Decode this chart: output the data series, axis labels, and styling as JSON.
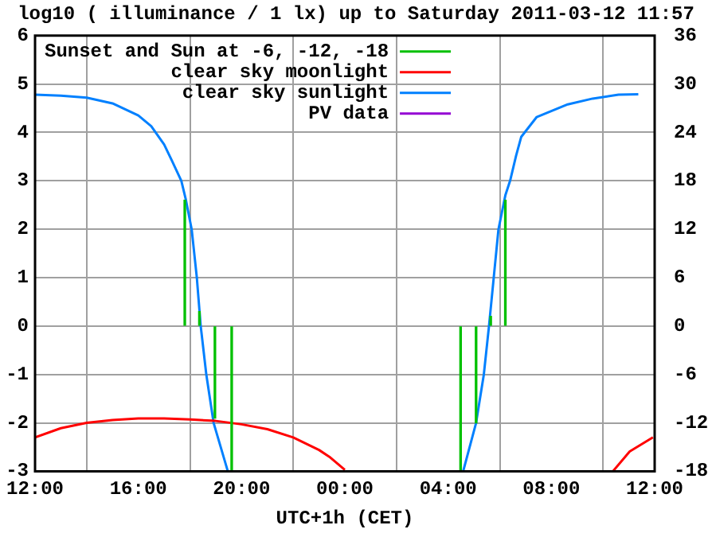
{
  "chart_data": {
    "type": "line",
    "title": "log10 ( illuminance / 1 lx) up to Saturday 2011-03-12 11:57",
    "xlabel": "UTC+1h (CET)",
    "xlim": [
      "2011-03-11T12:00",
      "2011-03-12T12:00"
    ],
    "xticks": [
      {
        "value": "2011-03-11T12:00",
        "label": "12:00"
      },
      {
        "value": "2011-03-11T16:00",
        "label": "16:00"
      },
      {
        "value": "2011-03-11T20:00",
        "label": "20:00"
      },
      {
        "value": "2011-03-12T00:00",
        "label": "00:00"
      },
      {
        "value": "2011-03-12T04:00",
        "label": "04:00"
      },
      {
        "value": "2011-03-12T08:00",
        "label": "08:00"
      },
      {
        "value": "2011-03-12T12:00",
        "label": "12:00"
      }
    ],
    "ylim": [
      -3,
      6
    ],
    "yticks": [
      -3,
      -2,
      -1,
      0,
      1,
      2,
      3,
      4,
      5,
      6
    ],
    "y2lim": [
      -18,
      36
    ],
    "y2ticks": [
      -18,
      -12,
      -6,
      0,
      6,
      12,
      18,
      24,
      30,
      36
    ],
    "grid": true,
    "legend": "top left",
    "marker": "none",
    "line_style": "solid",
    "series": [
      {
        "name": "Sunset and Sun at -6, -12, -18",
        "type": "bar",
        "color": "#00c000",
        "x": [
          "2011-03-11T17:48",
          "2011-03-11T18:22",
          "2011-03-11T18:58",
          "2011-03-11T19:37",
          "2011-03-12T04:29",
          "2011-03-12T05:05",
          "2011-03-12T05:39",
          "2011-03-12T06:13"
        ],
        "values": [
          2.6,
          0.3,
          -1.9,
          -3,
          -3,
          -2,
          0.2,
          2.6
        ]
      },
      {
        "name": "clear sky moonlight",
        "color": "#ff0000",
        "x": [
          "2011-03-11T12:00",
          "2011-03-11T13:00",
          "2011-03-11T14:00",
          "2011-03-11T15:00",
          "2011-03-11T16:00",
          "2011-03-11T17:00",
          "2011-03-11T18:00",
          "2011-03-11T19:00",
          "2011-03-11T20:00",
          "2011-03-11T21:00",
          "2011-03-11T22:00",
          "2011-03-11T23:00",
          "2011-03-11T23:24",
          "2011-03-12T00:00",
          "2011-03-12T02:00",
          "2011-03-12T10:23",
          "2011-03-12T11:02",
          "2011-03-12T11:56"
        ],
        "values": [
          -2.3,
          -2.11,
          -2.0,
          -1.94,
          -1.91,
          -1.91,
          -1.93,
          -1.96,
          -2.03,
          -2.13,
          -2.3,
          -2.56,
          -2.7,
          -2.97,
          null,
          -3,
          -2.59,
          -2.3
        ]
      },
      {
        "name": "clear sky sunlight",
        "color": "#0080ff",
        "x": [
          "2011-03-11T12:00",
          "2011-03-11T13:00",
          "2011-03-11T14:00",
          "2011-03-11T15:00",
          "2011-03-11T16:00",
          "2011-03-11T16:30",
          "2011-03-11T17:00",
          "2011-03-11T17:18",
          "2011-03-11T17:40",
          "2011-03-11T17:50",
          "2011-03-11T18:04",
          "2011-03-11T18:16",
          "2011-03-11T18:25",
          "2011-03-11T18:38",
          "2011-03-11T18:55",
          "2011-03-11T19:28",
          "2011-03-12T00:00",
          "2011-03-12T04:35",
          "2011-03-12T05:05",
          "2011-03-12T05:23",
          "2011-03-12T05:35",
          "2011-03-12T05:46",
          "2011-03-12T05:57",
          "2011-03-12T06:13",
          "2011-03-12T06:24",
          "2011-03-12T06:38",
          "2011-03-12T06:50",
          "2011-03-12T07:26",
          "2011-03-12T08:38",
          "2011-03-12T09:36",
          "2011-03-12T10:36",
          "2011-03-12T11:22"
        ],
        "values": [
          4.78,
          4.76,
          4.72,
          4.6,
          4.35,
          4.13,
          3.75,
          3.42,
          3.0,
          2.63,
          2.0,
          1.0,
          0.0,
          -1.0,
          -2.0,
          -3.0,
          null,
          -3.0,
          -2.0,
          -1.0,
          0.0,
          1.0,
          2.0,
          2.7,
          3.0,
          3.52,
          3.91,
          4.32,
          4.58,
          4.7,
          4.78,
          4.79
        ]
      },
      {
        "name": "PV data",
        "color": "#9400d3"
      }
    ]
  }
}
